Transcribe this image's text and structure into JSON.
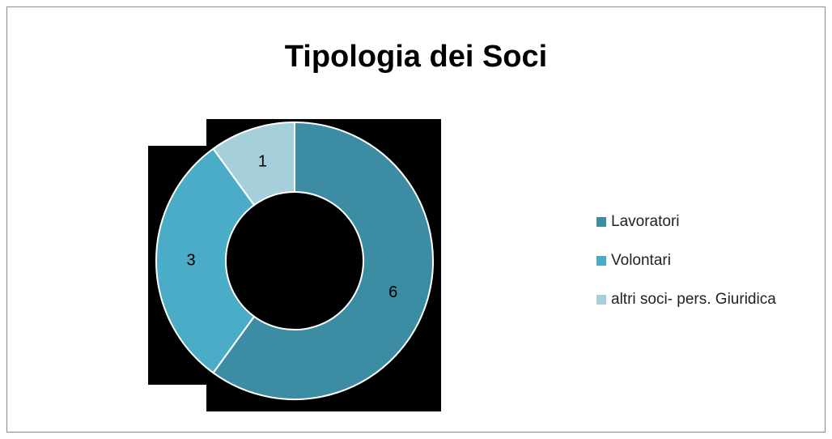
{
  "chart_data": {
    "type": "donut",
    "title": "Tipologia dei Soci",
    "categories": [
      "Lavoratori",
      "Volontari",
      "altri soci- pers. Giuridica"
    ],
    "values": [
      6,
      3,
      1
    ],
    "colors": [
      "#3c8da4",
      "#4aacc6",
      "#a6cfdc"
    ],
    "legend": "right"
  }
}
